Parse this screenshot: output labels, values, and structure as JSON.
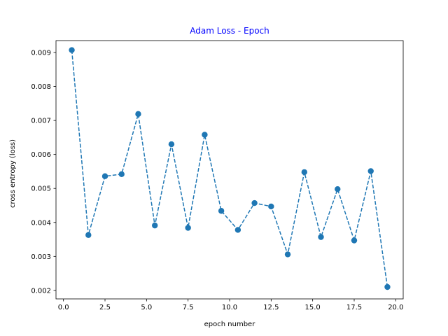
{
  "chart_data": {
    "type": "line",
    "title": "Adam Loss  - Epoch",
    "title_color": "#0000ff",
    "xlabel": "epoch number",
    "ylabel": "cross entropy (loss)",
    "xlim": [
      -0.45,
      20.45
    ],
    "ylim": [
      0.00175,
      0.00935
    ],
    "xticks": [
      0.0,
      2.5,
      5.0,
      7.5,
      10.0,
      12.5,
      15.0,
      17.5,
      20.0
    ],
    "xtick_labels": [
      "0.0",
      "2.5",
      "5.0",
      "7.5",
      "10.0",
      "12.5",
      "15.0",
      "17.5",
      "20.0"
    ],
    "yticks": [
      0.002,
      0.003,
      0.004,
      0.005,
      0.006,
      0.007,
      0.008,
      0.009
    ],
    "ytick_labels": [
      "0.002",
      "0.003",
      "0.004",
      "0.005",
      "0.006",
      "0.007",
      "0.008",
      "0.009"
    ],
    "grid": false,
    "legend": false,
    "series": [
      {
        "color": "#1f77b4",
        "line_style": "dashed",
        "marker": "circle",
        "x": [
          0.5,
          1.5,
          2.5,
          3.5,
          4.5,
          5.5,
          6.5,
          7.5,
          8.5,
          9.5,
          10.5,
          11.5,
          12.5,
          13.5,
          14.5,
          15.5,
          16.5,
          17.5,
          18.5,
          19.5
        ],
        "y": [
          0.00907,
          0.00363,
          0.00536,
          0.00542,
          0.00719,
          0.00391,
          0.0063,
          0.00384,
          0.00658,
          0.00434,
          0.00378,
          0.00457,
          0.00447,
          0.00306,
          0.00548,
          0.00357,
          0.00498,
          0.00347,
          0.00551,
          0.0021
        ]
      }
    ]
  }
}
